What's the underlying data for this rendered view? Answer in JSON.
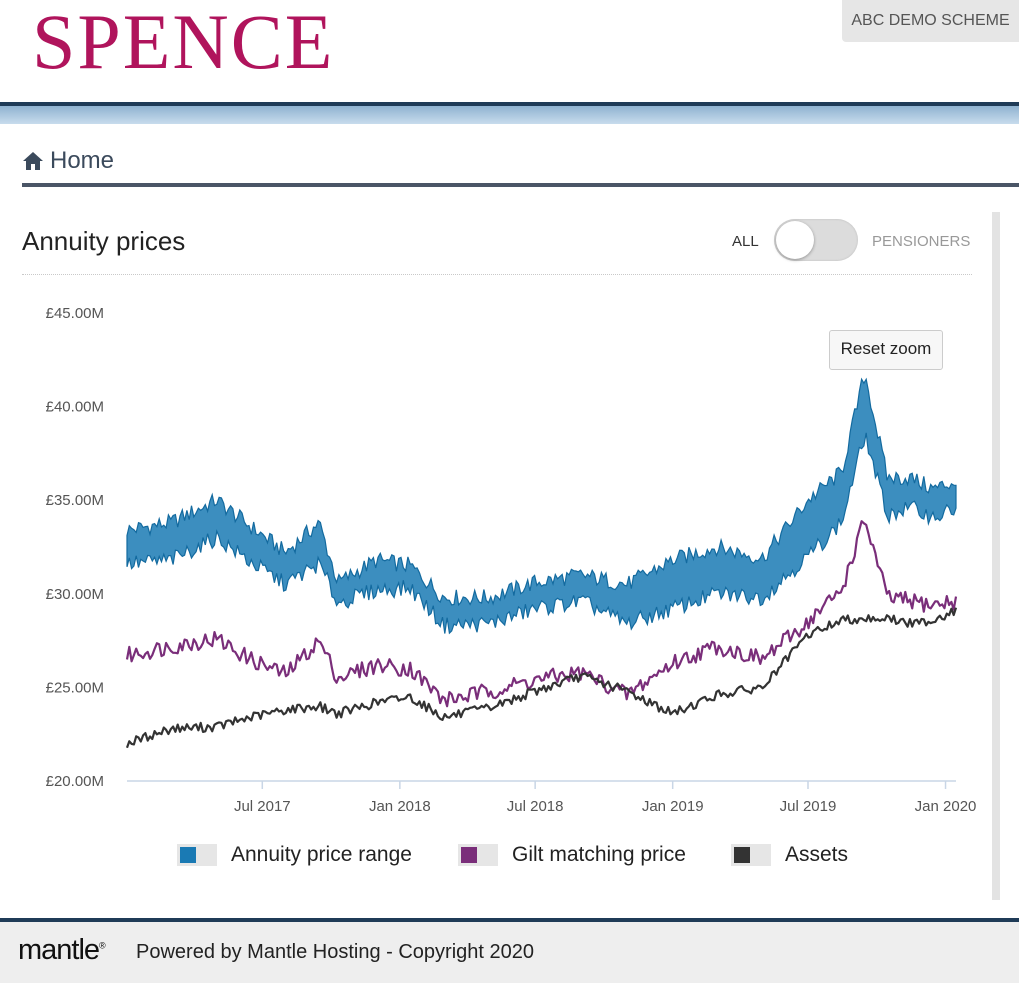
{
  "header": {
    "logo": "SPENCE",
    "scheme": "ABC DEMO SCHEME"
  },
  "breadcrumb": {
    "icon": "home-icon",
    "label": "Home"
  },
  "card": {
    "title": "Annuity prices",
    "toggle": {
      "left_label": "ALL",
      "right_label": "PENSIONERS",
      "state": "ALL"
    }
  },
  "reset_zoom_label": "Reset zoom",
  "legend": [
    {
      "label": "Annuity price range",
      "color": "#1a7ab4"
    },
    {
      "label": "Gilt matching price",
      "color": "#7a2e7a"
    },
    {
      "label": "Assets",
      "color": "#333333"
    }
  ],
  "chart_data": {
    "type": "area",
    "title": "",
    "xlabel": "",
    "ylabel": "",
    "ylim": [
      20,
      45
    ],
    "y_unit": "£M",
    "y_ticks": [
      "£20.00M",
      "£25.00M",
      "£30.00M",
      "£35.00M",
      "£40.00M",
      "£45.00M"
    ],
    "x_ticks": [
      "Jul 2017",
      "Jan 2018",
      "Jul 2018",
      "Jan 2019",
      "Jul 2019",
      "Jan 2020"
    ],
    "xlim": [
      "2017-01-01",
      "2020-01-15"
    ],
    "grid": false,
    "legend_position": "bottom",
    "series": [
      {
        "name": "Annuity price range",
        "kind": "range",
        "x": [
          "2017-01-01",
          "2017-03-01",
          "2017-05-01",
          "2017-06-15",
          "2017-08-01",
          "2017-09-15",
          "2017-10-10",
          "2017-12-01",
          "2018-01-15",
          "2018-03-01",
          "2018-05-01",
          "2018-07-01",
          "2018-09-01",
          "2018-11-01",
          "2019-01-01",
          "2019-03-01",
          "2019-05-01",
          "2019-07-01",
          "2019-08-15",
          "2019-09-15",
          "2019-10-15",
          "2019-11-15",
          "2019-12-15",
          "2020-01-15"
        ],
        "low": [
          31.6,
          31.8,
          33.0,
          31.7,
          30.5,
          31.6,
          29.5,
          30.2,
          30.3,
          28.3,
          28.4,
          29.2,
          29.6,
          28.4,
          29.2,
          30.0,
          29.8,
          32.0,
          33.8,
          38.5,
          34.2,
          34.6,
          34.1,
          34.5
        ],
        "high": [
          33.4,
          33.8,
          35.0,
          33.6,
          32.2,
          33.8,
          30.6,
          31.8,
          31.5,
          29.8,
          29.8,
          30.6,
          31.0,
          30.5,
          31.8,
          32.5,
          31.9,
          35.0,
          36.5,
          41.8,
          36.2,
          36.2,
          35.6,
          36.0
        ]
      },
      {
        "name": "Gilt matching price",
        "x": [
          "2017-01-01",
          "2017-03-01",
          "2017-05-01",
          "2017-06-15",
          "2017-08-01",
          "2017-09-15",
          "2017-10-10",
          "2017-12-01",
          "2018-01-15",
          "2018-03-01",
          "2018-05-01",
          "2018-07-01",
          "2018-09-01",
          "2018-11-01",
          "2019-01-01",
          "2019-03-01",
          "2019-05-01",
          "2019-07-01",
          "2019-08-15",
          "2019-09-15",
          "2019-10-15",
          "2019-11-15",
          "2019-12-15",
          "2020-01-15"
        ],
        "values": [
          26.7,
          27.2,
          27.6,
          26.5,
          25.7,
          27.5,
          25.5,
          26.2,
          26.0,
          24.3,
          24.8,
          25.4,
          25.8,
          24.6,
          26.3,
          27.2,
          26.5,
          28.5,
          30.2,
          34.0,
          29.8,
          29.6,
          29.4,
          29.6
        ]
      },
      {
        "name": "Assets",
        "x": [
          "2017-01-01",
          "2017-03-01",
          "2017-05-01",
          "2017-06-15",
          "2017-08-01",
          "2017-09-15",
          "2017-10-10",
          "2017-12-01",
          "2018-01-15",
          "2018-03-01",
          "2018-05-01",
          "2018-07-01",
          "2018-09-01",
          "2018-11-01",
          "2019-01-01",
          "2019-03-01",
          "2019-05-01",
          "2019-07-01",
          "2019-08-15",
          "2019-09-15",
          "2019-10-15",
          "2019-11-15",
          "2019-12-15",
          "2020-01-15"
        ],
        "values": [
          22.0,
          22.8,
          22.9,
          23.4,
          23.8,
          24.0,
          23.6,
          24.2,
          24.5,
          23.4,
          23.9,
          24.8,
          25.6,
          24.8,
          23.6,
          24.6,
          25.0,
          27.8,
          28.6,
          28.7,
          28.7,
          28.4,
          28.6,
          29.1
        ]
      }
    ]
  },
  "footer": {
    "logo": "mantle",
    "powered": "Powered by Mantle Hosting - Copyright 2020"
  }
}
